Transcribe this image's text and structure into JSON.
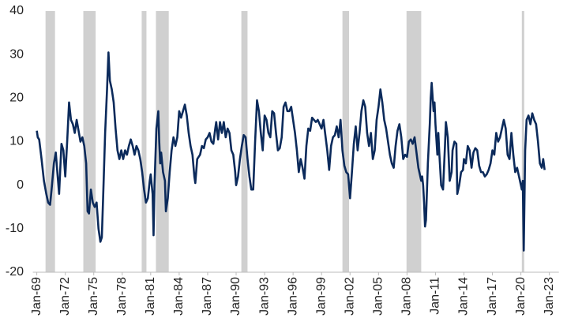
{
  "chart_data": {
    "type": "line",
    "xlim": [
      1969,
      2024
    ],
    "ylim": [
      -20,
      40
    ],
    "yticks": [
      -20,
      -10,
      0,
      10,
      20,
      30,
      40
    ],
    "xticks": [
      {
        "value": 1969,
        "label": "Jan-69"
      },
      {
        "value": 1972,
        "label": "Jan-72"
      },
      {
        "value": 1975,
        "label": "Jan-75"
      },
      {
        "value": 1978,
        "label": "Jan-78"
      },
      {
        "value": 1981,
        "label": "Jan-81"
      },
      {
        "value": 1984,
        "label": "Jan-84"
      },
      {
        "value": 1987,
        "label": "Jan-87"
      },
      {
        "value": 1990,
        "label": "Jan-90"
      },
      {
        "value": 1993,
        "label": "Jan-93"
      },
      {
        "value": 1996,
        "label": "Jan-96"
      },
      {
        "value": 1999,
        "label": "Jan-99"
      },
      {
        "value": 2002,
        "label": "Jan-02"
      },
      {
        "value": 2005,
        "label": "Jan-05"
      },
      {
        "value": 2008,
        "label": "Jan-08"
      },
      {
        "value": 2011,
        "label": "Jan-11"
      },
      {
        "value": 2014,
        "label": "Jan-14"
      },
      {
        "value": 2017,
        "label": "Jan-17"
      },
      {
        "value": 2020,
        "label": "Jan-20"
      },
      {
        "value": 2023,
        "label": "Jan-23"
      }
    ],
    "recessions": [
      [
        1969.92,
        1970.92
      ],
      [
        1973.9,
        1975.2
      ],
      [
        1980.05,
        1980.55
      ],
      [
        1981.55,
        1982.9
      ],
      [
        1990.55,
        1991.2
      ],
      [
        2001.2,
        2001.9
      ],
      [
        2007.95,
        2009.5
      ],
      [
        2020.1,
        2020.35
      ]
    ],
    "recession_color": "#d0d0d0",
    "series": [
      {
        "color": "#0b2a5b",
        "x": [
          1969.0,
          1969.1,
          1969.25,
          1969.5,
          1969.75,
          1970.0,
          1970.2,
          1970.4,
          1970.6,
          1970.8,
          1971.0,
          1971.2,
          1971.35,
          1971.5,
          1971.6,
          1971.8,
          1972.0,
          1972.2,
          1972.4,
          1972.6,
          1972.8,
          1973.0,
          1973.2,
          1973.4,
          1973.6,
          1973.8,
          1974.0,
          1974.2,
          1974.35,
          1974.5,
          1974.7,
          1974.9,
          1975.1,
          1975.3,
          1975.5,
          1975.7,
          1975.85,
          1976.0,
          1976.2,
          1976.4,
          1976.55,
          1976.7,
          1976.9,
          1977.1,
          1977.3,
          1977.5,
          1977.7,
          1977.9,
          1978.1,
          1978.3,
          1978.5,
          1978.7,
          1978.9,
          1979.1,
          1979.3,
          1979.5,
          1979.7,
          1979.9,
          1980.1,
          1980.3,
          1980.5,
          1980.7,
          1980.9,
          1981.0,
          1981.2,
          1981.3,
          1981.4,
          1981.6,
          1981.8,
          1981.9,
          1982.0,
          1982.1,
          1982.3,
          1982.5,
          1982.6,
          1982.8,
          1983.0,
          1983.2,
          1983.4,
          1983.6,
          1983.8,
          1984.0,
          1984.2,
          1984.4,
          1984.6,
          1984.8,
          1985.0,
          1985.2,
          1985.4,
          1985.6,
          1985.7,
          1985.9,
          1986.2,
          1986.4,
          1986.6,
          1986.8,
          1987.0,
          1987.2,
          1987.4,
          1987.6,
          1987.8,
          1987.9,
          1988.1,
          1988.3,
          1988.5,
          1988.7,
          1988.9,
          1989.1,
          1989.3,
          1989.5,
          1989.7,
          1989.9,
          1990.0,
          1990.2,
          1990.4,
          1990.6,
          1990.8,
          1991.0,
          1991.2,
          1991.4,
          1991.6,
          1991.8,
          1992.0,
          1992.2,
          1992.4,
          1992.6,
          1992.8,
          1993.0,
          1993.2,
          1993.4,
          1993.6,
          1993.8,
          1994.0,
          1994.2,
          1994.4,
          1994.6,
          1994.8,
          1995.0,
          1995.2,
          1995.4,
          1995.6,
          1995.8,
          1996.0,
          1996.2,
          1996.4,
          1996.6,
          1996.8,
          1997.0,
          1997.2,
          1997.4,
          1997.6,
          1997.8,
          1998.0,
          1998.2,
          1998.4,
          1998.6,
          1998.8,
          1999.0,
          1999.2,
          1999.4,
          1999.6,
          1999.8,
          2000.0,
          2000.2,
          2000.4,
          2000.6,
          2000.8,
          2001.0,
          2001.2,
          2001.4,
          2001.6,
          2001.8,
          2002.0,
          2002.2,
          2002.4,
          2002.6,
          2002.8,
          2003.0,
          2003.2,
          2003.4,
          2003.6,
          2003.8,
          2004.0,
          2004.2,
          2004.4,
          2004.6,
          2004.8,
          2005.0,
          2005.2,
          2005.4,
          2005.6,
          2005.8,
          2006.0,
          2006.2,
          2006.4,
          2006.6,
          2006.8,
          2007.0,
          2007.2,
          2007.4,
          2007.6,
          2007.8,
          2008.0,
          2008.2,
          2008.4,
          2008.6,
          2008.8,
          2009.0,
          2009.2,
          2009.4,
          2009.5,
          2009.6,
          2009.7,
          2009.8,
          2009.9,
          2010.0,
          2010.2,
          2010.4,
          2010.5,
          2010.6,
          2010.8,
          2010.9,
          2011.0,
          2011.2,
          2011.3,
          2011.4,
          2011.6,
          2011.8,
          2012.0,
          2012.1,
          2012.3,
          2012.5,
          2012.7,
          2012.8,
          2013.0,
          2013.2,
          2013.3,
          2013.5,
          2013.7,
          2013.9,
          2014.0,
          2014.2,
          2014.4,
          2014.6,
          2014.8,
          2015.0,
          2015.2,
          2015.4,
          2015.6,
          2015.8,
          2016.0,
          2016.2,
          2016.4,
          2016.6,
          2016.8,
          2017.0,
          2017.2,
          2017.4,
          2017.6,
          2017.8,
          2018.0,
          2018.2,
          2018.4,
          2018.6,
          2018.8,
          2019.0,
          2019.2,
          2019.4,
          2019.6,
          2019.8,
          2019.9,
          2020.0,
          2020.1,
          2020.2,
          2020.3,
          2020.45,
          2020.6,
          2020.8,
          2021.0,
          2021.2,
          2021.4,
          2021.6,
          2021.8,
          2022.0,
          2022.2,
          2022.35,
          2022.5
        ],
        "values": [
          12.5,
          11,
          10.5,
          6,
          1,
          -2,
          -4,
          -4.5,
          0,
          5,
          7.5,
          2,
          -2,
          5,
          9.5,
          8,
          2,
          10,
          19,
          15,
          14,
          12,
          15,
          12.5,
          10,
          11,
          9,
          5,
          -6,
          -6.5,
          -1,
          -4,
          -5,
          -4,
          -10,
          -13,
          -12,
          -2,
          12,
          22,
          30.5,
          24,
          22,
          19,
          13,
          8,
          6,
          8,
          6,
          8,
          7,
          9,
          10.5,
          9,
          7,
          9,
          8,
          6,
          3,
          -1,
          -4,
          -3,
          1,
          2.5,
          -2,
          -11.5,
          0,
          13,
          17,
          10,
          5,
          7.5,
          3,
          1,
          -6,
          -3,
          3,
          8,
          11,
          9,
          11,
          17,
          15.5,
          17,
          18.5,
          16,
          12,
          9,
          7,
          2,
          0.5,
          6,
          7,
          9,
          8.5,
          10.5,
          11,
          12,
          10,
          9.5,
          13,
          14.5,
          10.5,
          14.5,
          12,
          14.5,
          11,
          13,
          12,
          8,
          7,
          3,
          0,
          2,
          6,
          9,
          11.5,
          11,
          6,
          2,
          -1,
          -1,
          10,
          19.5,
          17,
          12,
          8,
          16,
          15,
          12,
          11,
          17,
          16.5,
          12,
          8,
          8.5,
          11,
          18,
          19,
          17,
          17,
          18,
          15,
          12,
          8,
          3,
          6,
          4,
          1.5,
          9,
          13,
          12.5,
          15.5,
          15,
          14.5,
          15,
          14,
          13,
          15,
          11.5,
          8,
          3.5,
          9,
          11,
          11.5,
          13.5,
          11,
          15,
          8,
          4.5,
          3,
          2.5,
          -3,
          3,
          9.5,
          13.5,
          8,
          12,
          17,
          19.5,
          18,
          12,
          9,
          12,
          6,
          8,
          15,
          18,
          22,
          19,
          15,
          13,
          10,
          7,
          5,
          4,
          9,
          12.5,
          14,
          11,
          6,
          7,
          6.5,
          10,
          10.5,
          9.5,
          11,
          7.5,
          4,
          2,
          1,
          2,
          0,
          -4,
          -9.5,
          -8,
          5,
          14,
          20,
          23.5,
          17,
          19,
          14,
          7,
          12,
          7.5,
          0,
          -1,
          9,
          14.5,
          11,
          1,
          3,
          8,
          10,
          9.5,
          -2,
          0,
          3,
          3.5,
          6,
          5,
          9,
          8,
          4,
          7.5,
          8.5,
          8,
          4.5,
          3,
          3,
          2,
          2.5,
          3.5,
          5,
          8,
          7,
          12,
          10,
          11,
          13,
          15,
          13,
          7,
          6,
          12,
          7,
          3,
          4,
          2,
          1,
          0,
          -1,
          1,
          -15,
          8,
          15,
          16,
          14,
          16.5,
          15,
          14,
          10,
          5,
          4,
          6,
          3.5
        ]
      }
    ]
  }
}
